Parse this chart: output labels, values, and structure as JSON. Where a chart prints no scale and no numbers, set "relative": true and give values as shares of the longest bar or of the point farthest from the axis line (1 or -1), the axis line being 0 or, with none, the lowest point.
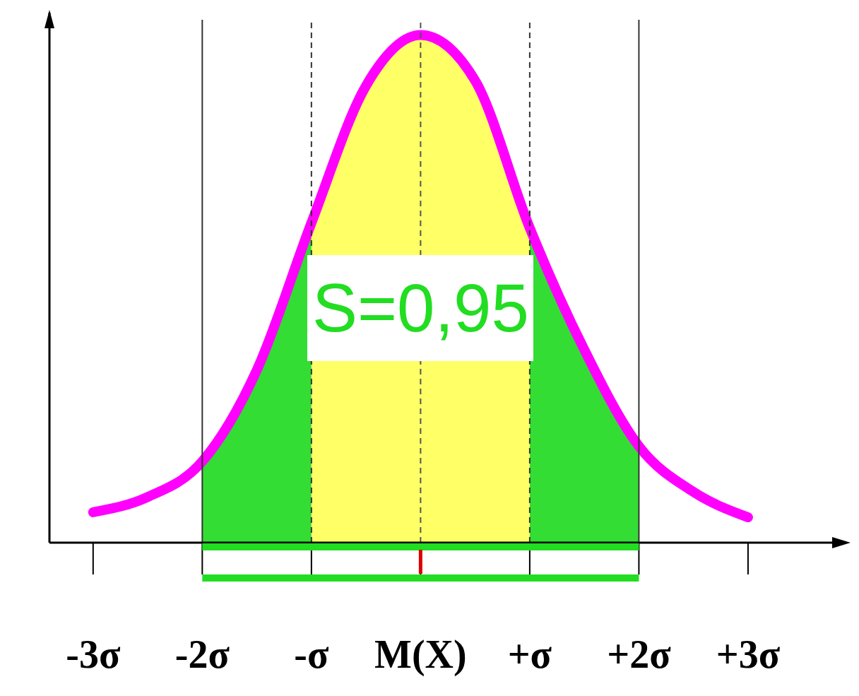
{
  "chart_data": {
    "type": "line",
    "relative": true,
    "annotations": [
      "S=0,95"
    ],
    "xlim": [
      -3.4,
      3.9
    ],
    "xticks": [
      {
        "value": -3,
        "label": "-3σ"
      },
      {
        "value": -2,
        "label": "-2σ"
      },
      {
        "value": -1,
        "label": "-σ"
      },
      {
        "value": 0,
        "label": "M(X)"
      },
      {
        "value": 1,
        "label": "+σ"
      },
      {
        "value": 2,
        "label": "+2σ"
      },
      {
        "value": 3,
        "label": "+3σ"
      }
    ],
    "series": [
      {
        "type": "area",
        "color": "#33dd33",
        "x": [
          -2,
          -1.5,
          -1,
          -0.5,
          0,
          0.5,
          1,
          1.5,
          2
        ],
        "values": [
          0.16,
          0.34,
          0.63,
          null,
          null,
          null,
          0.62,
          0.38,
          0.19
        ]
      },
      {
        "type": "area",
        "color": "#ffff66",
        "x": [
          -1,
          -0.5,
          0,
          0.5,
          1
        ],
        "values": [
          0.63,
          0.9,
          1,
          0.91,
          0.62
        ]
      },
      {
        "color": "#ff00ff",
        "x": [
          -3,
          -2.5,
          -2,
          -1.5,
          -1,
          -0.5,
          0,
          0.5,
          1,
          1.5,
          2,
          2.5,
          3
        ],
        "values": [
          0.06,
          0.09,
          0.16,
          0.34,
          0.63,
          0.9,
          1,
          0.91,
          0.62,
          0.38,
          0.19,
          0.1,
          0.05
        ]
      }
    ],
    "ref_lines": [
      {
        "axis": "x",
        "value": 0,
        "color": "#555555",
        "line_style": "dashed"
      },
      {
        "axis": "x",
        "value": -1,
        "color": "#333333",
        "line_style": "dashed"
      },
      {
        "axis": "x",
        "value": 1,
        "color": "#333333",
        "line_style": "dashed"
      },
      {
        "axis": "x",
        "value": -2,
        "color": "#333333",
        "line_style": "solid"
      },
      {
        "axis": "x",
        "value": 2,
        "color": "#333333",
        "line_style": "solid"
      }
    ],
    "marker": "none"
  }
}
